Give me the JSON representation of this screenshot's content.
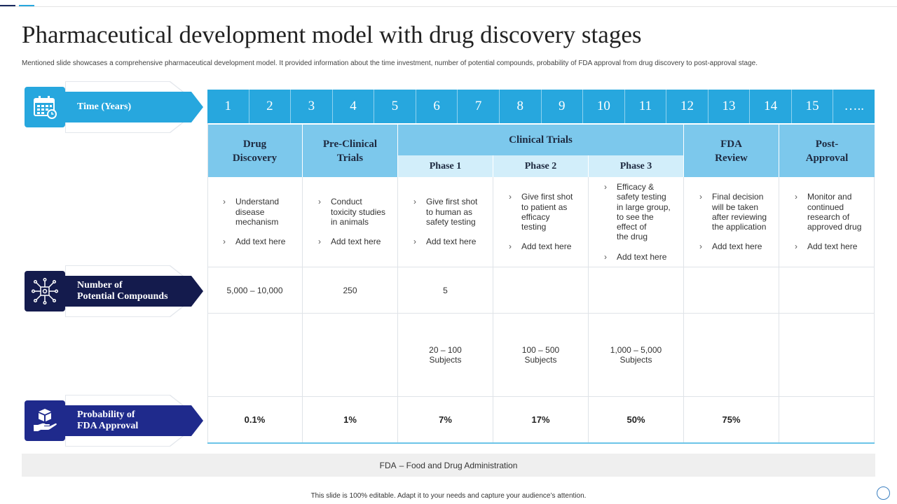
{
  "title": "Pharmaceutical development model with drug discovery stages",
  "subtitle": "Mentioned slide showcases a comprehensive pharmaceutical development model. It provided information about the time investment, number of potential compounds, probability of FDA approval from drug discovery to post-approval stage.",
  "labels": {
    "time": "Time (Years)",
    "compounds": "Number of\nPotential Compounds",
    "probability": "Probability of\nFDA Approval"
  },
  "colors": {
    "time": "#27a7de",
    "compounds": "#141b4d",
    "probability": "#1f2a8c"
  },
  "icons": {
    "time": "calendar-icon",
    "compounds": "network-chip-icon",
    "probability": "hand-box-icon"
  },
  "years": [
    "1",
    "2",
    "3",
    "4",
    "5",
    "6",
    "7",
    "8",
    "9",
    "10",
    "11",
    "12",
    "13",
    "14",
    "15",
    "….."
  ],
  "stages": {
    "drug_discovery": "Drug\nDiscovery",
    "pre_clinical": "Pre-Clinical\nTrials",
    "clinical": "Clinical Trials",
    "phase1": "Phase 1",
    "phase2": "Phase 2",
    "phase3": "Phase 3",
    "fda_review": "FDA\nReview",
    "post_approval": "Post-\nApproval"
  },
  "descriptions": {
    "drug_discovery": [
      "Understand\ndisease\nmechanism",
      "Add text here"
    ],
    "pre_clinical": [
      "Conduct\ntoxicity studies\nin animals",
      "Add text here"
    ],
    "phase1": [
      "Give first shot\nto human as\nsafety testing",
      "Add text here"
    ],
    "phase2": [
      "Give first shot\nto patient as\nefficacy\ntesting",
      "Add text here"
    ],
    "phase3": [
      "Efficacy &\nsafety testing\nin large group,\nto see the\neffect of\nthe drug",
      "Add text here"
    ],
    "fda_review": [
      "Final decision\nwill be taken\nafter reviewing\nthe application",
      "Add text here"
    ],
    "post_approval": [
      "Monitor and\ncontinued\nresearch of\napproved drug",
      "Add text here"
    ]
  },
  "compounds": {
    "drug_discovery": "5,000 – 10,000",
    "pre_clinical": "250",
    "phase1": "5"
  },
  "subjects": {
    "phase1": "20 – 100\nSubjects",
    "phase2": "100 – 500\nSubjects",
    "phase3": "1,000 – 5,000\nSubjects"
  },
  "probability": {
    "drug_discovery": "0.1%",
    "pre_clinical": "1%",
    "phase1": "7%",
    "phase2": "17%",
    "phase3": "50%",
    "fda_review": "75%"
  },
  "footnote": {
    "abbr": "FDA",
    "text": "– Food and Drug Administration"
  },
  "bottom_note": "This slide is 100% editable. Adapt it to your needs and capture your audience’s attention."
}
